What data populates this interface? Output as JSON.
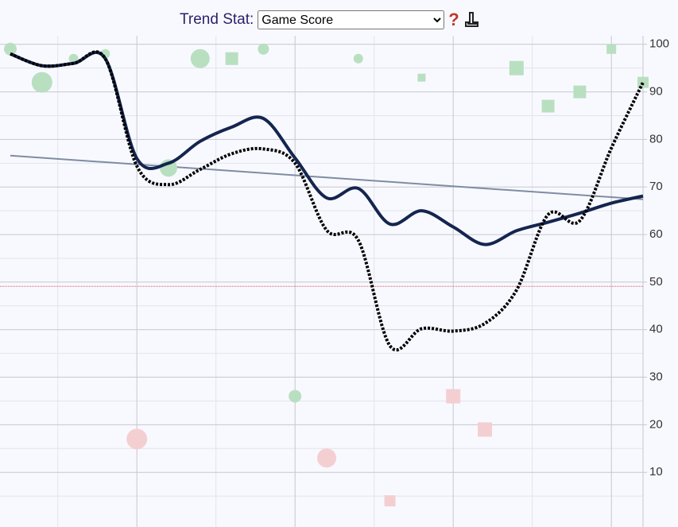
{
  "chart_data": {
    "type": "scatter",
    "control_label": "Trend Stat:",
    "control_value": "Game Score",
    "help_icon": "?",
    "ylim": [
      -1.5,
      101.8
    ],
    "xlim": [
      0,
      20
    ],
    "yticks": [
      10,
      20,
      30,
      40,
      50,
      60,
      70,
      80,
      90,
      100
    ],
    "minor_yticks": [
      5,
      15,
      25,
      35,
      45,
      55,
      65,
      75,
      85,
      95
    ],
    "xgrid": [
      4,
      9,
      14,
      19
    ],
    "minor_xgrid": [
      1.5,
      6.5,
      11.5,
      16.5
    ],
    "grid": true,
    "scatter": {
      "values": [
        99,
        92,
        97,
        98,
        17,
        74,
        97,
        97,
        99,
        26,
        13,
        97,
        4,
        93,
        26,
        19,
        95,
        87,
        90,
        99,
        92
      ],
      "sizes": [
        8,
        13,
        6,
        6,
        13,
        11,
        12,
        16,
        7,
        8,
        12,
        6,
        14,
        10,
        18,
        18,
        18,
        16,
        16,
        12,
        14
      ],
      "shapes": [
        "circle",
        "circle",
        "circle",
        "circle",
        "circle",
        "circle",
        "circle",
        "square",
        "circle",
        "circle",
        "circle",
        "circle",
        "square",
        "square",
        "square",
        "square",
        "square",
        "square",
        "square",
        "square",
        "square"
      ],
      "colors": [
        "#b9dfc1",
        "#b9dfc1",
        "#b9dfc1",
        "#b9dfc1",
        "#f4cfd2",
        "#b9dfc1",
        "#b9dfc1",
        "#b9dfc1",
        "#b9dfc1",
        "#b9dfc1",
        "#f4cfd2",
        "#b9dfc1",
        "#f4cfd2",
        "#b9dfc1",
        "#f4cfd2",
        "#f4cfd2",
        "#b9dfc1",
        "#b9dfc1",
        "#b9dfc1",
        "#b9dfc1",
        "#b9dfc1"
      ]
    },
    "series": [
      {
        "style": "solid",
        "color": "#14254f",
        "values": [
          98,
          95.5,
          96,
          97,
          76,
          75,
          79.6,
          82.6,
          84.4,
          76.1,
          67.7,
          69.7,
          62.2,
          65,
          61.6,
          57.9,
          60.8,
          62.6,
          64.5,
          66.6,
          68.1
        ]
      },
      {
        "style": "dotted",
        "color": "#000000",
        "values": [
          98,
          95.5,
          96,
          97,
          74.4,
          70.5,
          73.7,
          77,
          78,
          75,
          60.9,
          58.8,
          36.6,
          40.2,
          39.7,
          41.3,
          48.3,
          64.2,
          62.9,
          78.2,
          92
        ]
      }
    ],
    "trend": {
      "color": "#7f8ca3",
      "values": [
        76.6,
        67.4
      ]
    },
    "reference_line": {
      "color": "#e05060",
      "value": 49.1
    }
  }
}
